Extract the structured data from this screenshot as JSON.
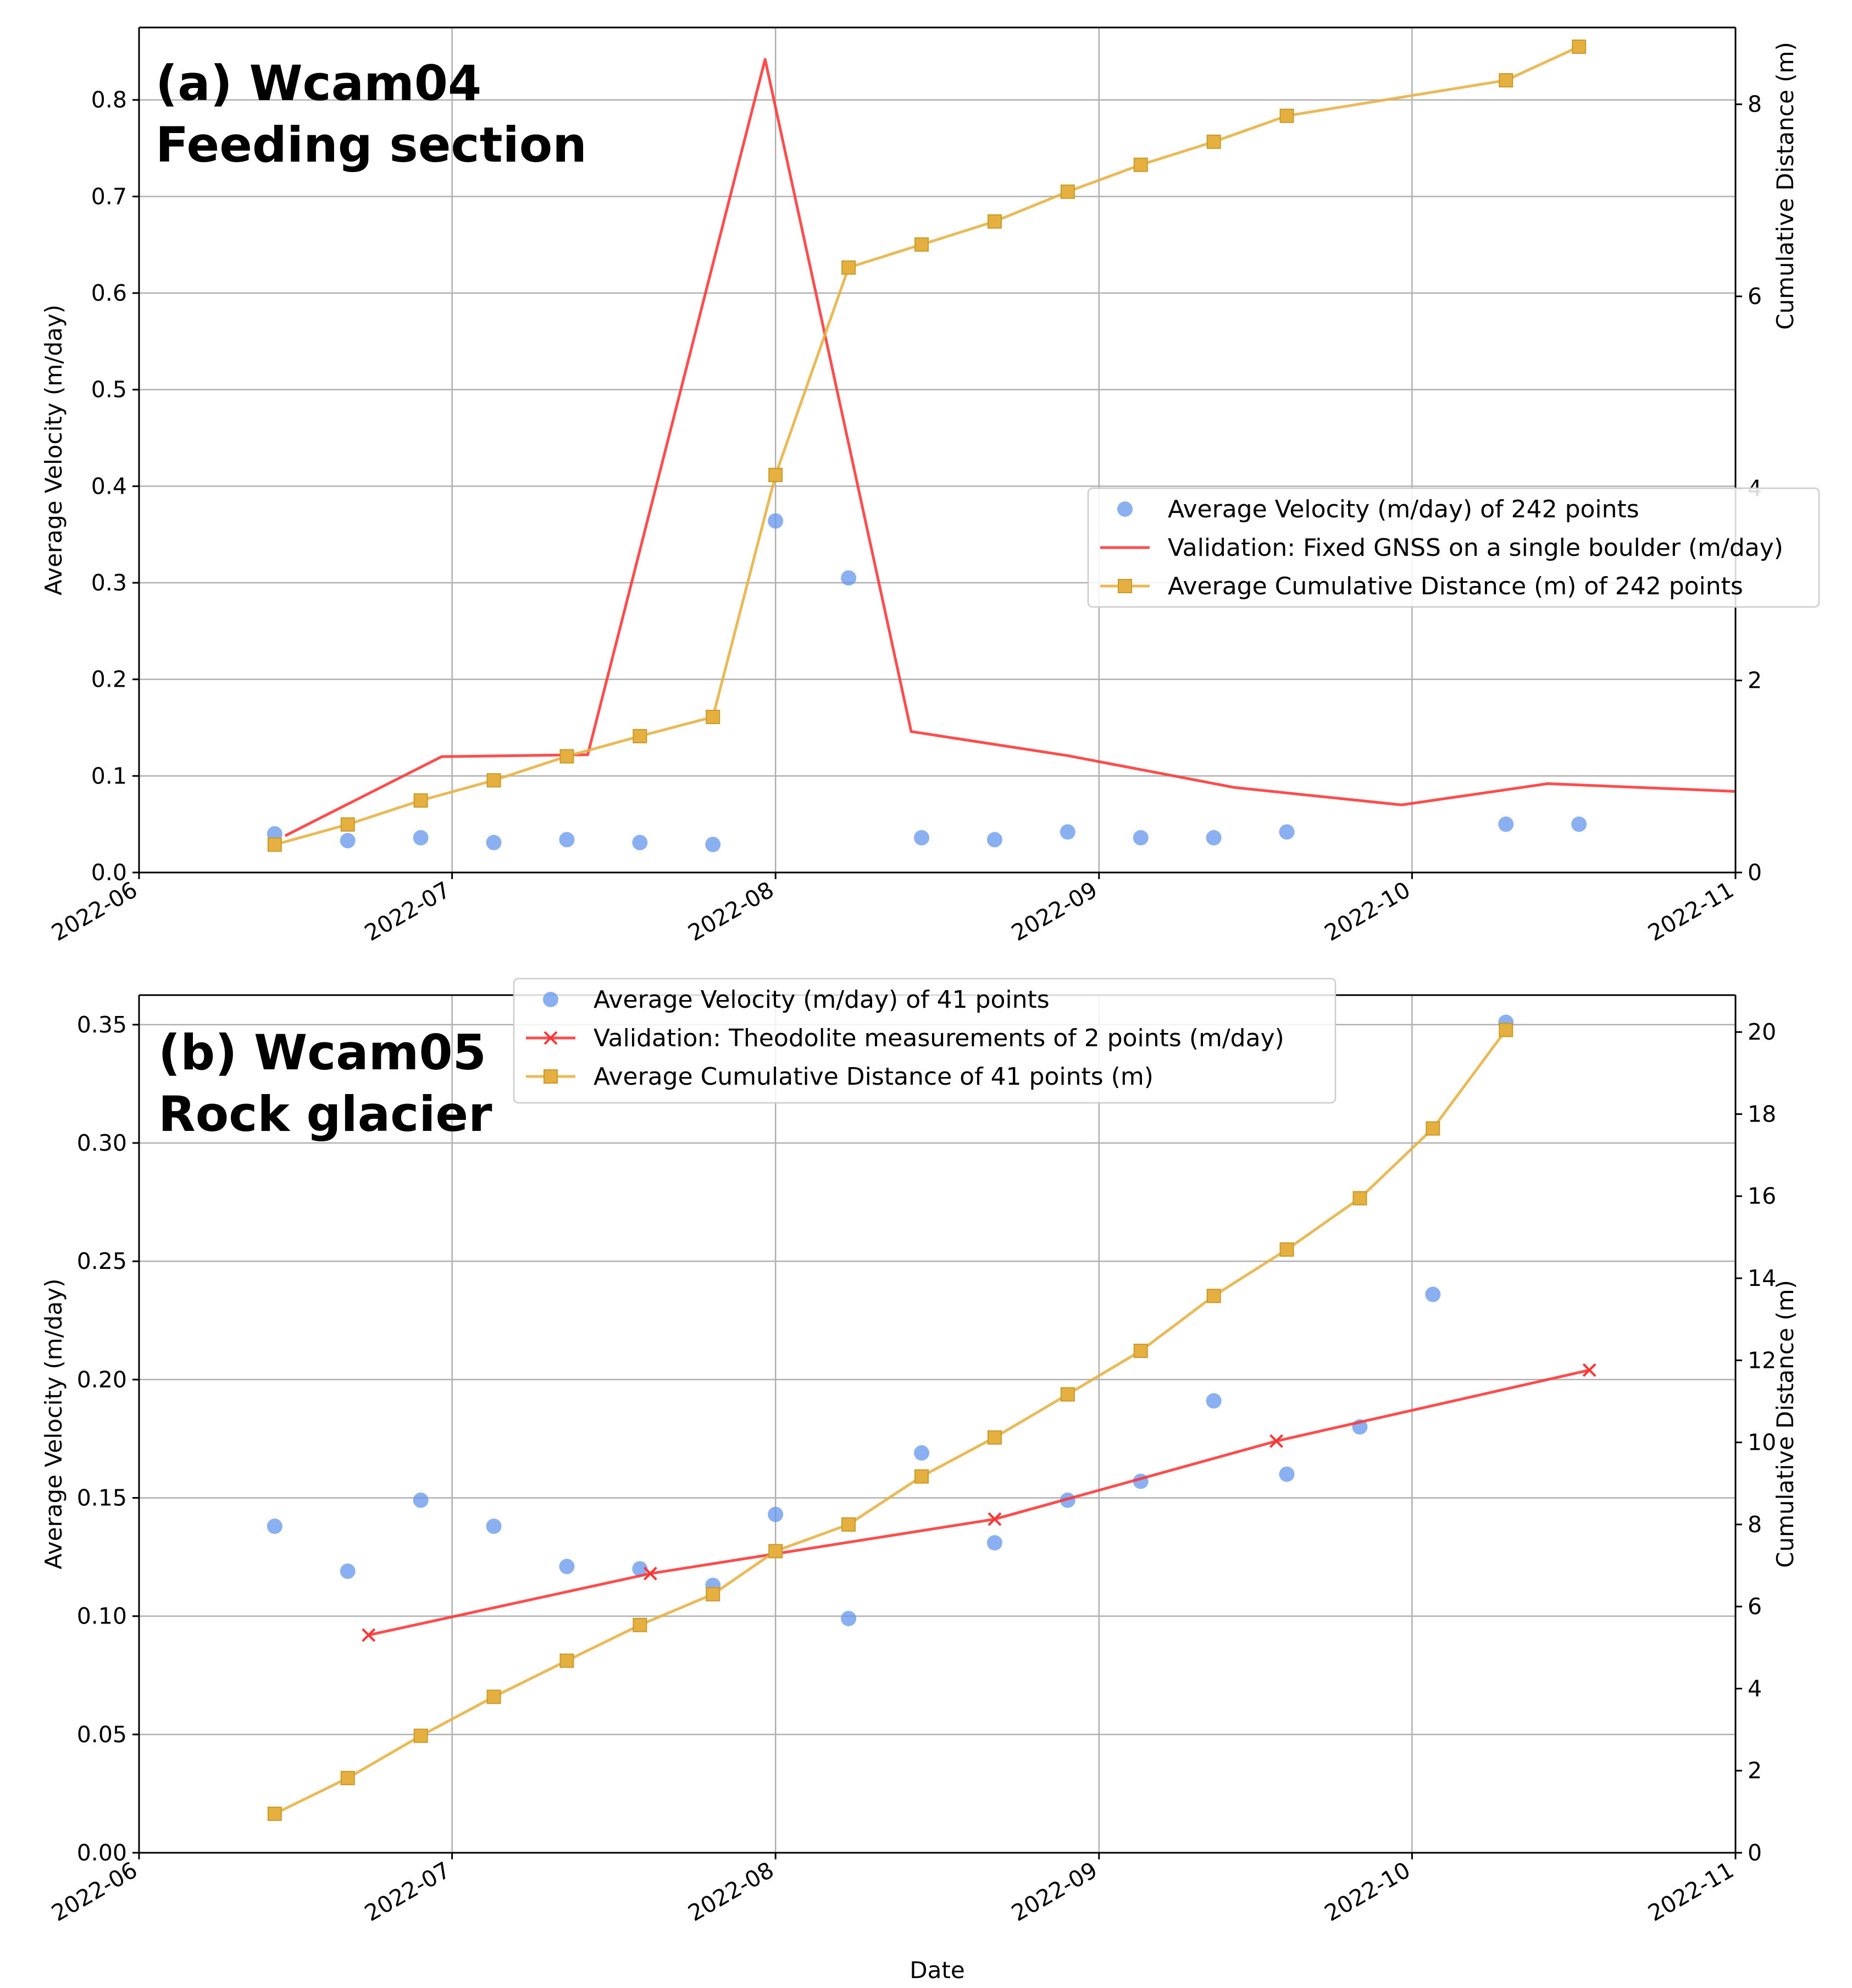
{
  "colors": {
    "velocity": "#6495ed",
    "validation": "#ff3333",
    "cumulative": "#e6b040",
    "cumulative_edge": "#c89a2a",
    "grid": "#b0b0b0"
  },
  "chart_data": [
    {
      "type": "line",
      "panel_label": [
        "(a) Wcam04",
        "Feeding section"
      ],
      "xlabel": "",
      "ylabel": "Average Velocity (m/day)",
      "y2label": "Cumulative Distance (m)",
      "xlim": [
        "2022-06-01",
        "2022-11-01"
      ],
      "xticks": [
        "2022-06",
        "2022-07",
        "2022-08",
        "2022-09",
        "2022-10",
        "2022-11"
      ],
      "ylim": [
        0,
        0.875
      ],
      "yticks": [
        0.0,
        0.1,
        0.2,
        0.3,
        0.4,
        0.5,
        0.6,
        0.7,
        0.8
      ],
      "ytick_labels": [
        "0.0",
        "0.1",
        "0.2",
        "0.3",
        "0.4",
        "0.5",
        "0.6",
        "0.7",
        "0.8"
      ],
      "y2lim": [
        0,
        8.8
      ],
      "y2ticks": [
        0,
        2,
        4,
        6,
        8
      ],
      "grid": true,
      "legend_position": "center-right",
      "series": [
        {
          "name": "Average Velocity (m/day) of 242 points",
          "kind": "scatter",
          "axis": "left",
          "color": "#6495ed",
          "points": [
            [
              "2022-06-14",
              0.04
            ],
            [
              "2022-06-21",
              0.033
            ],
            [
              "2022-06-28",
              0.036
            ],
            [
              "2022-07-05",
              0.031
            ],
            [
              "2022-07-12",
              0.034
            ],
            [
              "2022-07-19",
              0.031
            ],
            [
              "2022-07-26",
              0.029
            ],
            [
              "2022-08-01",
              0.364
            ],
            [
              "2022-08-08",
              0.305
            ],
            [
              "2022-08-15",
              0.036
            ],
            [
              "2022-08-22",
              0.034
            ],
            [
              "2022-08-29",
              0.042
            ],
            [
              "2022-09-05",
              0.036
            ],
            [
              "2022-09-12",
              0.036
            ],
            [
              "2022-09-19",
              0.042
            ],
            [
              "2022-10-10",
              0.05
            ],
            [
              "2022-10-17",
              0.05
            ]
          ]
        },
        {
          "name": "Validation: Fixed GNSS on a single boulder (m/day)",
          "kind": "line",
          "axis": "left",
          "color": "#ff3333",
          "points": [
            [
              "2022-06-15",
              0.038
            ],
            [
              "2022-06-30",
              0.12
            ],
            [
              "2022-07-14",
              0.122
            ],
            [
              "2022-07-31",
              0.842
            ],
            [
              "2022-08-14",
              0.146
            ],
            [
              "2022-08-29",
              0.121
            ],
            [
              "2022-09-14",
              0.088
            ],
            [
              "2022-09-30",
              0.07
            ],
            [
              "2022-10-14",
              0.092
            ],
            [
              "2022-11-01",
              0.084
            ]
          ]
        },
        {
          "name": "Average Cumulative Distance (m) of 242 points",
          "kind": "line-square",
          "axis": "right",
          "color": "#e6b040",
          "points": [
            [
              "2022-06-14",
              0.29
            ],
            [
              "2022-06-21",
              0.5
            ],
            [
              "2022-06-28",
              0.75
            ],
            [
              "2022-07-05",
              0.96
            ],
            [
              "2022-07-12",
              1.21
            ],
            [
              "2022-07-19",
              1.42
            ],
            [
              "2022-07-26",
              1.62
            ],
            [
              "2022-08-01",
              4.14
            ],
            [
              "2022-08-08",
              6.3
            ],
            [
              "2022-08-15",
              6.54
            ],
            [
              "2022-08-22",
              6.78
            ],
            [
              "2022-08-29",
              7.09
            ],
            [
              "2022-09-05",
              7.37
            ],
            [
              "2022-09-12",
              7.61
            ],
            [
              "2022-09-19",
              7.88
            ],
            [
              "2022-10-10",
              8.25
            ],
            [
              "2022-10-17",
              8.6
            ]
          ]
        }
      ]
    },
    {
      "type": "line",
      "panel_label": [
        "(b) Wcam05",
        "Rock glacier"
      ],
      "xlabel": "Date",
      "ylabel": "Average Velocity (m/day)",
      "y2label": "Cumulative Distance (m)",
      "xlim": [
        "2022-06-01",
        "2022-11-01"
      ],
      "xticks": [
        "2022-06",
        "2022-07",
        "2022-08",
        "2022-09",
        "2022-10",
        "2022-11"
      ],
      "ylim": [
        0,
        0.3625
      ],
      "yticks": [
        0.0,
        0.05,
        0.1,
        0.15,
        0.2,
        0.25,
        0.3,
        0.35
      ],
      "ytick_labels": [
        "0.00",
        "0.05",
        "0.10",
        "0.15",
        "0.20",
        "0.25",
        "0.30",
        "0.35"
      ],
      "y2lim": [
        0,
        20.9
      ],
      "y2ticks": [
        0,
        2,
        4,
        6,
        8,
        10,
        12,
        14,
        16,
        18,
        20
      ],
      "grid": true,
      "legend_position": "top-center",
      "series": [
        {
          "name": "Average Velocity (m/day) of 41 points",
          "kind": "scatter",
          "axis": "left",
          "color": "#6495ed",
          "points": [
            [
              "2022-06-14",
              0.138
            ],
            [
              "2022-06-21",
              0.119
            ],
            [
              "2022-06-28",
              0.149
            ],
            [
              "2022-07-05",
              0.138
            ],
            [
              "2022-07-12",
              0.121
            ],
            [
              "2022-07-19",
              0.12
            ],
            [
              "2022-07-26",
              0.113
            ],
            [
              "2022-08-01",
              0.143
            ],
            [
              "2022-08-08",
              0.099
            ],
            [
              "2022-08-15",
              0.169
            ],
            [
              "2022-08-22",
              0.131
            ],
            [
              "2022-08-29",
              0.149
            ],
            [
              "2022-09-05",
              0.157
            ],
            [
              "2022-09-12",
              0.191
            ],
            [
              "2022-09-19",
              0.16
            ],
            [
              "2022-09-26",
              0.18
            ],
            [
              "2022-10-03",
              0.236
            ],
            [
              "2022-10-10",
              0.351
            ]
          ]
        },
        {
          "name": "Validation: Theodolite measurements of 2 points (m/day)",
          "kind": "line-x",
          "axis": "left",
          "color": "#ff3333",
          "points": [
            [
              "2022-06-23",
              0.092
            ],
            [
              "2022-07-20",
              0.118
            ],
            [
              "2022-08-22",
              0.141
            ],
            [
              "2022-09-18",
              0.174
            ],
            [
              "2022-10-18",
              0.204
            ]
          ]
        },
        {
          "name": "Average Cumulative Distance of 41 points (m)",
          "kind": "line-square",
          "axis": "right",
          "color": "#e6b040",
          "points": [
            [
              "2022-06-14",
              0.95
            ],
            [
              "2022-06-21",
              1.82
            ],
            [
              "2022-06-28",
              2.85
            ],
            [
              "2022-07-05",
              3.8
            ],
            [
              "2022-07-12",
              4.68
            ],
            [
              "2022-07-19",
              5.55
            ],
            [
              "2022-07-26",
              6.3
            ],
            [
              "2022-08-01",
              7.35
            ],
            [
              "2022-08-08",
              8.0
            ],
            [
              "2022-08-15",
              9.17
            ],
            [
              "2022-08-22",
              10.12
            ],
            [
              "2022-08-29",
              11.17
            ],
            [
              "2022-09-05",
              12.23
            ],
            [
              "2022-09-12",
              13.57
            ],
            [
              "2022-09-19",
              14.7
            ],
            [
              "2022-09-26",
              15.95
            ],
            [
              "2022-10-03",
              17.65
            ],
            [
              "2022-10-10",
              20.05
            ]
          ]
        }
      ]
    }
  ]
}
